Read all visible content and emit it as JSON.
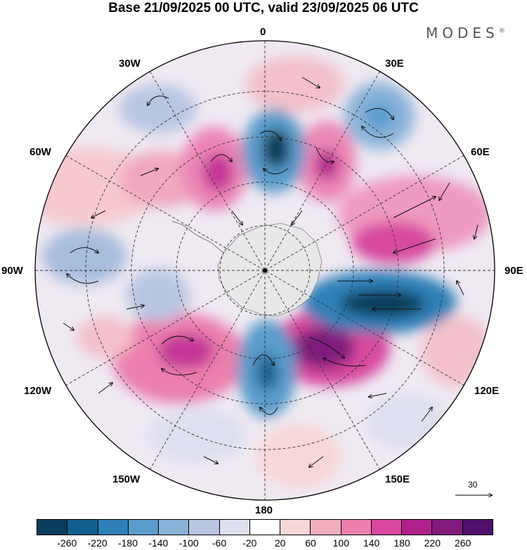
{
  "title": "Base 21/09/2025 00 UTC, valid 23/09/2025 06 UTC",
  "brand": {
    "name": "MODES",
    "mark": "®"
  },
  "longitude_labels": {
    "lon_0": "0",
    "lon_30e": "30E",
    "lon_60e": "60E",
    "lon_90e": "90E",
    "lon_120e": "120E",
    "lon_150e": "150E",
    "lon_180": "180",
    "lon_150w": "150W",
    "lon_120w": "120W",
    "lon_90w": "90W",
    "lon_60w": "60W",
    "lon_30w": "30W"
  },
  "reference_vector": {
    "value": "30"
  },
  "colorbar": {
    "ticks": [
      "-260",
      "-220",
      "-180",
      "-140",
      "-100",
      "-60",
      "-20",
      "20",
      "60",
      "100",
      "140",
      "180",
      "220",
      "260"
    ],
    "colors": [
      "#0b3d5c",
      "#125f8e",
      "#2e80b8",
      "#5a9ccb",
      "#8ab3da",
      "#b9c6e2",
      "#dfe0ef",
      "#ffffff",
      "#f8d7d8",
      "#f3aebe",
      "#ec7fae",
      "#d8489f",
      "#b0208c",
      "#811a7c",
      "#4f0f6b"
    ]
  }
}
